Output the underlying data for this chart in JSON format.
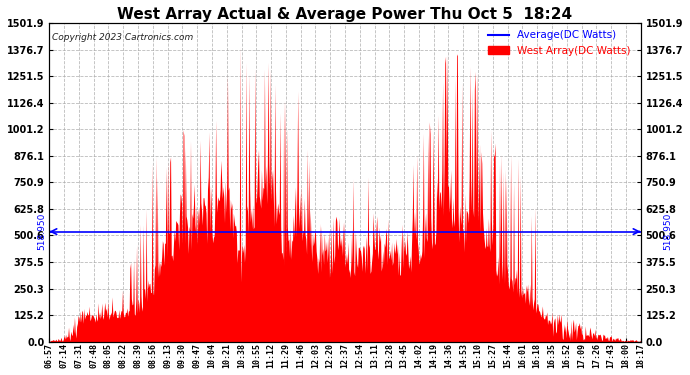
{
  "title": "West Array Actual & Average Power Thu Oct 5  18:24",
  "copyright": "Copyright 2023 Cartronics.com",
  "legend_avg": "Average(DC Watts)",
  "legend_west": "West Array(DC Watts)",
  "avg_line_value": 518.95,
  "avg_label": "518.950",
  "ymin": 0.0,
  "ymax": 1501.9,
  "yticks": [
    0.0,
    125.2,
    250.3,
    375.5,
    500.6,
    625.8,
    750.9,
    876.1,
    1001.2,
    1126.4,
    1251.5,
    1376.7,
    1501.9
  ],
  "bg_color": "#ffffff",
  "fill_color": "#ff0000",
  "avg_color": "#0000ff",
  "title_color": "#000000",
  "grid_color": "#aaaaaa",
  "xtick_labels": [
    "06:57",
    "07:14",
    "07:31",
    "07:48",
    "08:05",
    "08:22",
    "08:39",
    "08:56",
    "09:13",
    "09:30",
    "09:47",
    "10:04",
    "10:21",
    "10:38",
    "10:55",
    "11:12",
    "11:29",
    "11:46",
    "12:03",
    "12:20",
    "12:37",
    "12:54",
    "13:11",
    "13:28",
    "13:45",
    "14:02",
    "14:19",
    "14:36",
    "14:53",
    "15:10",
    "15:27",
    "15:44",
    "16:01",
    "16:18",
    "16:35",
    "16:52",
    "17:09",
    "17:26",
    "17:43",
    "18:00",
    "18:17"
  ]
}
